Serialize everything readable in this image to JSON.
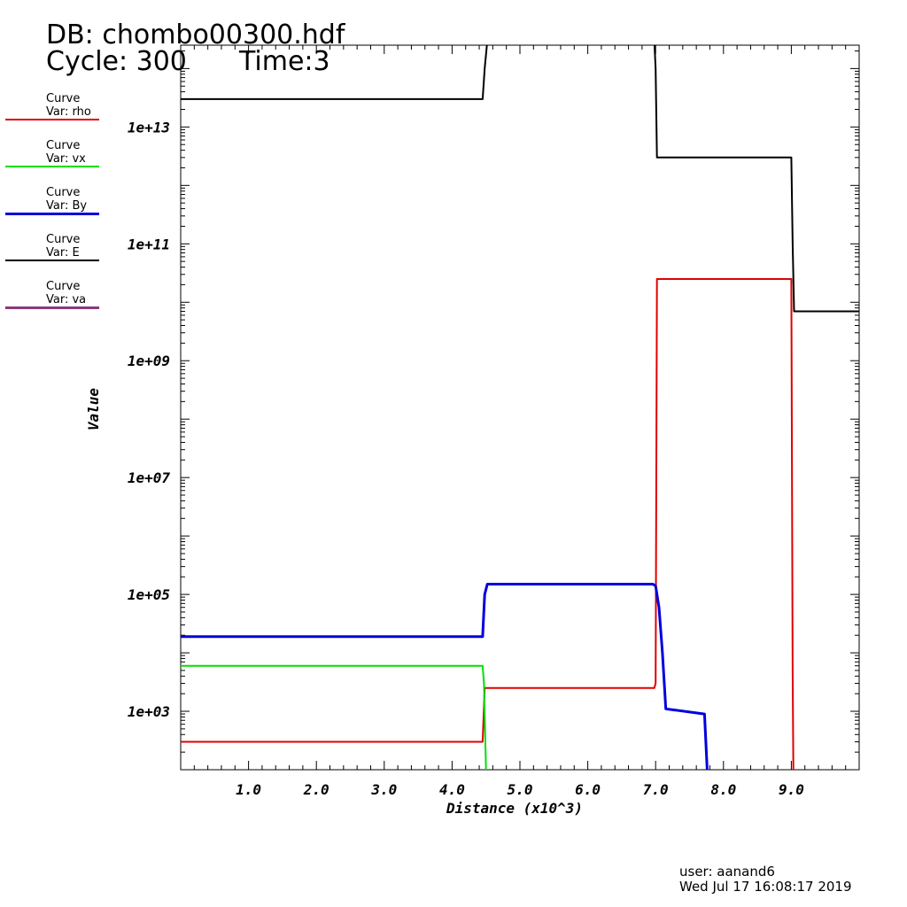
{
  "header": {
    "db": "DB: chombo00300.hdf",
    "cycle": "Cycle: 300",
    "time": "Time:3"
  },
  "legend": [
    {
      "curve": "Curve",
      "var": "Var: rho",
      "color": "#e00000"
    },
    {
      "curve": "Curve",
      "var": "Var: vx",
      "color": "#00e000"
    },
    {
      "curve": "Curve",
      "var": "Var: By",
      "color": "#0000dd"
    },
    {
      "curve": "Curve",
      "var": "Var: E",
      "color": "#000000"
    },
    {
      "curve": "Curve",
      "var": "Var: va",
      "color": "#8a3a7a"
    }
  ],
  "footer": {
    "user": "user: aanand6",
    "date": "Wed Jul 17 16:08:17 2019"
  },
  "chart_data": {
    "type": "line",
    "xlabel": "Distance (x10^3)",
    "ylabel": "Value",
    "xlim": [
      0,
      10
    ],
    "ylim_log10": [
      2,
      14.4
    ],
    "yscale": "log",
    "x_ticks": [
      1.0,
      2.0,
      3.0,
      4.0,
      5.0,
      6.0,
      7.0,
      8.0,
      9.0
    ],
    "x_tick_labels": [
      "1.0",
      "2.0",
      "3.0",
      "4.0",
      "5.0",
      "6.0",
      "7.0",
      "8.0",
      "9.0"
    ],
    "y_ticks_log10": [
      3,
      5,
      7,
      9,
      11,
      13
    ],
    "y_tick_labels": [
      "1e+03",
      "1e+05",
      "1e+07",
      "1e+09",
      "1e+11",
      "1e+13"
    ],
    "grid": false,
    "series": [
      {
        "name": "Var: E",
        "color": "#000000",
        "x": [
          0,
          4.45,
          4.48,
          4.52
        ],
        "y": [
          30000000000000,
          30000000000000,
          100000000000000,
          300000000000000
        ]
      },
      {
        "name": "Var: E",
        "color": "#000000",
        "x": [
          6.98,
          7.0,
          7.02,
          9.0,
          9.02,
          9.04,
          10.0
        ],
        "y": [
          300000000000000,
          100000000000000,
          3000000000000,
          3000000000000,
          100000000000,
          7000000000,
          7000000000
        ]
      },
      {
        "name": "Var: rho",
        "color": "#e00000",
        "x": [
          0,
          4.45,
          4.48,
          6.98,
          7.0,
          7.02,
          9.0,
          9.02,
          9.03
        ],
        "y": [
          300,
          300,
          2500,
          2500,
          3000,
          25000000000,
          25000000000,
          5000,
          100
        ]
      },
      {
        "name": "Var: vx",
        "color": "#00e000",
        "x": [
          0,
          4.45,
          4.47,
          4.5
        ],
        "y": [
          6000,
          6000,
          3000,
          100
        ]
      },
      {
        "name": "Var: By",
        "color": "#0000dd",
        "x": [
          0,
          4.45,
          4.48,
          4.52,
          6.96,
          7.0,
          7.05,
          7.1,
          7.15,
          7.72,
          7.74,
          7.76
        ],
        "y": [
          19000,
          19000,
          100000,
          150000,
          150000,
          140000,
          60000,
          10000,
          1100,
          900,
          300,
          100
        ]
      }
    ]
  }
}
